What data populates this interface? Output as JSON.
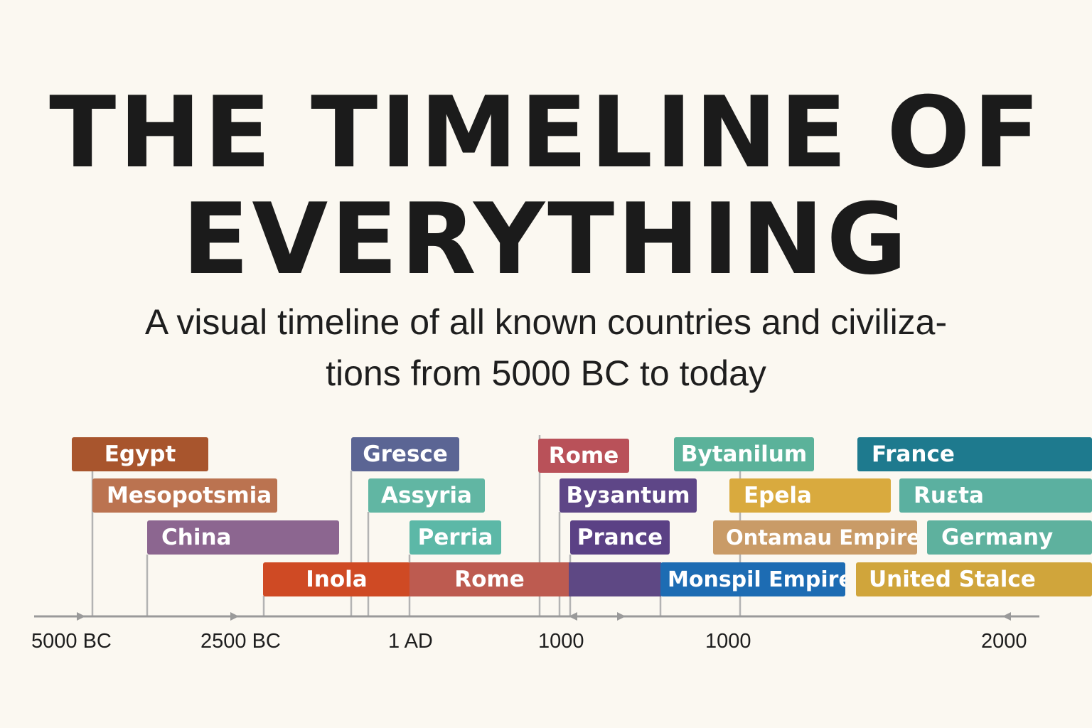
{
  "header": {
    "title_line_1": "THE TIMELINE OF",
    "title_line_2": "EVERYTHING",
    "subtitle_line_1": "A visual timeline of all known countries and civiliza-",
    "subtitle_line_2": "tions from 5000 BC to today"
  },
  "timeline": {
    "axis_labels": [
      "5000 BC",
      "2500 BC",
      "1 AD",
      "1000",
      "1000",
      "2000"
    ],
    "rows": [
      [
        {
          "label": "Egypt",
          "color": "#a8552d"
        },
        {
          "label": "Gresce",
          "color": "#5b6594"
        },
        {
          "label": "Rome",
          "color": "#b95159"
        },
        {
          "label": "Bytanilum",
          "color": "#5bb29a"
        },
        {
          "label": "France",
          "color": "#1e7a8e"
        }
      ],
      [
        {
          "label": "Mesopotsmia",
          "color": "#bb7350"
        },
        {
          "label": "Assyria",
          "color": "#61b6a3"
        },
        {
          "label": "Byзantum",
          "color": "#5e4687"
        },
        {
          "label": "Epela",
          "color": "#d9aa3e"
        },
        {
          "label": "Ruεta",
          "color": "#5bb0a0"
        }
      ],
      [
        {
          "label": "China",
          "color": "#8c6690"
        },
        {
          "label": "Perria",
          "color": "#5cb8a7"
        },
        {
          "label": "Prance",
          "color": "#5b4185"
        },
        {
          "label": "Ontamau Empire",
          "color": "#c99b67"
        },
        {
          "label": "Germany",
          "color": "#5eb19e"
        }
      ],
      [
        {
          "label": "Inola",
          "color": "#cf4a24"
        },
        {
          "label": "Rome",
          "color": "#bd5b50"
        },
        {
          "label": "",
          "color": "#5e4884"
        },
        {
          "label": "Monspil Empire",
          "color": "#1d6cb3"
        },
        {
          "label": "United Stalce",
          "color": "#d0a53b"
        }
      ]
    ],
    "axis_color": "#9a9a9a"
  }
}
